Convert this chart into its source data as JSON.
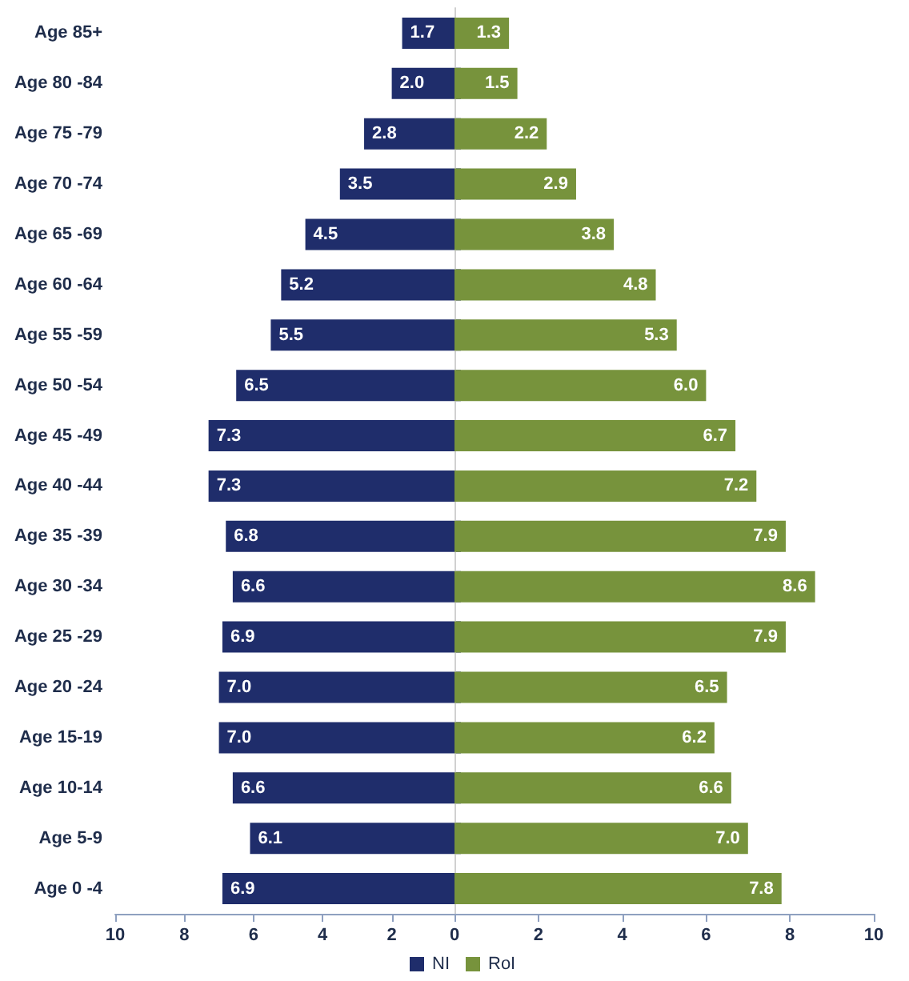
{
  "chart_data": [
    {
      "type": "bar",
      "orientation": "horizontal",
      "categories": [
        "Age 85+",
        "Age 80 -84",
        "Age 75 -79",
        "Age 70 -74",
        "Age 65 -69",
        "Age 60 -64",
        "Age 55 -59",
        "Age 50 -54",
        "Age 45 -49",
        "Age 40 -44",
        "Age 35 -39",
        "Age 30 -34",
        "Age 25 -29",
        "Age 20 -24",
        "Age 15-19",
        "Age 10-14",
        "Age 5-9",
        "Age 0 -4"
      ],
      "series": [
        {
          "name": "NI",
          "color": "#1f2d6b",
          "values": [
            1.7,
            2.0,
            2.8,
            3.5,
            4.5,
            5.2,
            5.5,
            6.5,
            7.3,
            7.3,
            6.8,
            6.6,
            6.9,
            7.0,
            7.0,
            6.6,
            6.1,
            6.9
          ],
          "value_labels": [
            "1.7",
            "2.0",
            "2.8",
            "3.5",
            "4.5",
            "5.2",
            "5.5",
            "6.5",
            "7.3",
            "7.3",
            "6.8",
            "6.6",
            "6.9",
            "7.0",
            "7.0",
            "6.6",
            "6.1",
            "6.9"
          ]
        }
      ],
      "xlim": [
        10,
        0
      ],
      "xticks": [
        10,
        8,
        6,
        4,
        2,
        {
          "value": 0,
          "label": null
        }
      ],
      "grid": false,
      "legend": "bottom right"
    },
    {
      "type": "bar",
      "orientation": "horizontal",
      "categories": [
        null,
        null,
        null,
        null,
        null,
        null,
        null,
        null,
        null,
        null,
        null,
        null,
        null,
        null,
        null,
        null,
        null,
        null
      ],
      "series": [
        {
          "name": "RoI",
          "color": "#77933c",
          "values": [
            1.3,
            1.5,
            2.2,
            2.9,
            3.8,
            4.8,
            5.3,
            6.0,
            6.7,
            7.2,
            7.9,
            8.6,
            7.9,
            6.5,
            6.2,
            6.6,
            7.0,
            7.8
          ],
          "value_labels": [
            "1.3",
            "1.5",
            "2.2",
            "2.9",
            "3.8",
            "4.8",
            "5.3",
            "6.0",
            "6.7",
            "7.2",
            "7.9",
            "8.6",
            "7.9",
            "6.5",
            "6.2",
            "6.6",
            "7.0",
            "7.8"
          ]
        }
      ],
      "xlim": [
        0,
        10
      ],
      "xticks": [
        0,
        2,
        4,
        6,
        8,
        10
      ],
      "tick_labels": "x",
      "grid": false,
      "legend": "bottom left"
    }
  ]
}
